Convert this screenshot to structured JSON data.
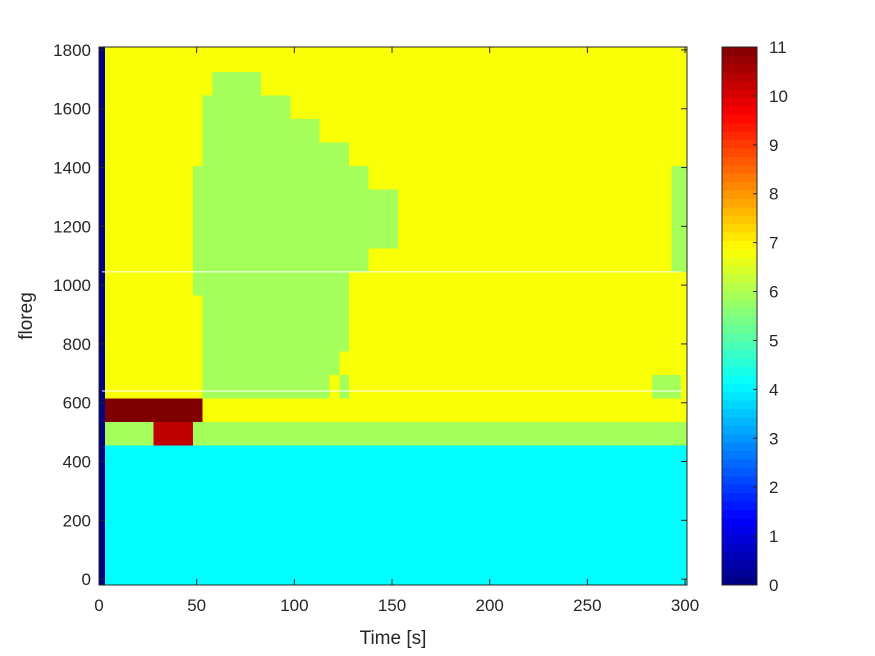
{
  "chart_data": {
    "type": "heatmap",
    "title": "",
    "xlabel": "Time [s]",
    "ylabel": "floreg",
    "xlim": [
      0,
      301
    ],
    "ylim": [
      -20,
      1810
    ],
    "xticks": [
      0,
      50,
      100,
      150,
      200,
      250,
      300
    ],
    "yticks": [
      0,
      200,
      400,
      600,
      800,
      1000,
      1200,
      1400,
      1600,
      1800
    ],
    "colormap": "jet",
    "clim": [
      0,
      11
    ],
    "colorbar_ticks": [
      0,
      1,
      2,
      3,
      4,
      5,
      6,
      7,
      8,
      9,
      10,
      11
    ],
    "grid": false,
    "regions": [
      {
        "label": "value 0 column",
        "value": 0,
        "x": [
          0,
          3
        ],
        "y": [
          -20,
          1810
        ]
      },
      {
        "label": "background lower",
        "value": 4.1,
        "x": [
          3,
          301
        ],
        "y": [
          -20,
          455
        ]
      },
      {
        "label": "background upper",
        "value": 6.8,
        "x": [
          3,
          301
        ],
        "y": [
          455,
          1810
        ]
      },
      {
        "label": "band 455-535",
        "value": 5.9,
        "x": [
          3,
          301
        ],
        "y": [
          455,
          535
        ]
      },
      {
        "label": "red cell",
        "value": 10.3,
        "x": [
          28,
          48
        ],
        "y": [
          455,
          535
        ]
      },
      {
        "label": "dark red row",
        "value": 11,
        "x": [
          3,
          53
        ],
        "y": [
          535,
          615
        ]
      },
      {
        "label": "plume",
        "value": 5.9,
        "x": [
          48,
          53
        ],
        "y": [
          965,
          1405
        ],
        "shape": "col"
      },
      {
        "label": "plume",
        "value": 5.9,
        "x": [
          53,
          58
        ],
        "y": [
          615,
          1645
        ],
        "shape": "col"
      },
      {
        "label": "plume",
        "value": 5.9,
        "x": [
          58,
          83
        ],
        "y": [
          615,
          1725
        ],
        "shape": "col"
      },
      {
        "label": "plume",
        "value": 5.9,
        "x": [
          83,
          98
        ],
        "y": [
          615,
          1645
        ],
        "shape": "col"
      },
      {
        "label": "plume",
        "value": 5.9,
        "x": [
          98,
          113
        ],
        "y": [
          615,
          1565
        ],
        "shape": "col"
      },
      {
        "label": "plume",
        "value": 5.9,
        "x": [
          113,
          118
        ],
        "y": [
          615,
          1485
        ],
        "shape": "col"
      },
      {
        "label": "plume",
        "value": 5.9,
        "x": [
          118,
          123
        ],
        "y": [
          695,
          1485
        ],
        "shape": "col"
      },
      {
        "label": "plume",
        "value": 5.9,
        "x": [
          123,
          128
        ],
        "y": [
          615,
          695
        ],
        "shape": "col"
      },
      {
        "label": "plume",
        "value": 5.9,
        "x": [
          123,
          128
        ],
        "y": [
          775,
          1485
        ],
        "shape": "col"
      },
      {
        "label": "plume",
        "value": 5.9,
        "x": [
          128,
          138
        ],
        "y": [
          1045,
          1405
        ],
        "shape": "col"
      },
      {
        "label": "plume",
        "value": 5.9,
        "x": [
          138,
          153
        ],
        "y": [
          1125,
          1325
        ],
        "shape": "col"
      },
      {
        "label": "right strip",
        "value": 5.9,
        "x": [
          283,
          298
        ],
        "y": [
          615,
          695
        ]
      },
      {
        "label": "right strip",
        "value": 5.9,
        "x": [
          293,
          301
        ],
        "y": [
          1045,
          1405
        ]
      }
    ],
    "reference_lines": [
      {
        "orientation": "horizontal",
        "y": 1045,
        "color": "#ffffff"
      },
      {
        "orientation": "horizontal",
        "y": 640,
        "color": "#ffffff"
      }
    ]
  }
}
